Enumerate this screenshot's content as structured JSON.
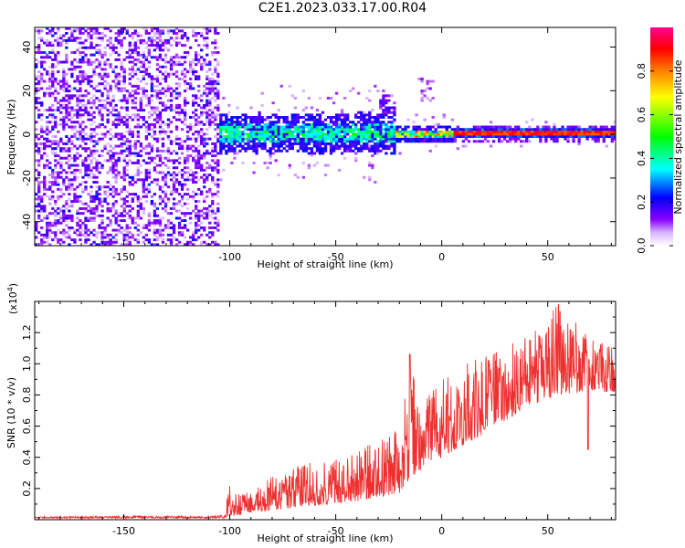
{
  "title": "C2E1.2023.033.17.00.R04",
  "chart_data": [
    {
      "type": "heatmap",
      "xlabel": "Height of straight line (km)",
      "ylabel": "Frequency (Hz)",
      "xlim": [
        -192,
        82
      ],
      "ylim": [
        -51,
        49
      ],
      "x_ticks": [
        -150,
        -100,
        -50,
        0,
        50
      ],
      "y_ticks": [
        -40,
        -20,
        0,
        20,
        40
      ],
      "colorbar": {
        "label": "Normalized spectral amplitude",
        "range": [
          0.0,
          1.0
        ],
        "ticks": [
          0.0,
          0.2,
          0.4,
          0.6,
          0.8
        ],
        "colormap": [
          "#ffffff",
          "#8a00ff",
          "#0000ff",
          "#00ffff",
          "#00ff00",
          "#ffff00",
          "#ff8000",
          "#ff0000",
          "#ff00a0"
        ]
      },
      "regions": [
        {
          "x_range": [
            -192,
            -106
          ],
          "description_level": "noise",
          "amplitude_range": [
            0.0,
            0.15
          ]
        },
        {
          "x_range": [
            -106,
            -22
          ],
          "center_hz": 0,
          "band_halfwidth_hz": 8,
          "amplitude_range": [
            0.1,
            0.5
          ]
        },
        {
          "x_range": [
            -22,
            5
          ],
          "center_hz": 0,
          "band_halfwidth_hz": 3,
          "amplitude_range": [
            0.2,
            0.85
          ]
        },
        {
          "x_range": [
            5,
            82
          ],
          "center_hz": 0,
          "band_halfwidth_hz": 1.5,
          "amplitude_range": [
            0.8,
            1.0
          ]
        }
      ]
    },
    {
      "type": "line",
      "xlabel": "Height of straight line (km)",
      "ylabel": "SNR (10 * v/v)",
      "scale_label": "(x10",
      "scale_exponent": "4",
      "scale_close": ")",
      "xlim": [
        -192,
        82
      ],
      "ylim": [
        0,
        1.4
      ],
      "x_ticks": [
        -150,
        -100,
        -50,
        0,
        50
      ],
      "y_ticks": [
        0.2,
        0.4,
        0.6,
        0.8,
        1.0,
        1.2
      ],
      "y_tick_labels": [
        "0.2",
        "0.4",
        "0.6",
        "0.8",
        "1.0",
        "1.2"
      ],
      "line_color": "#ee3030",
      "envelope": {
        "x": [
          -192,
          -110,
          -102,
          -100,
          -95,
          -80,
          -60,
          -40,
          -20,
          -15,
          -10,
          0,
          20,
          40,
          55,
          70,
          82
        ],
        "baseline": [
          0.01,
          0.01,
          0.01,
          0.02,
          0.03,
          0.06,
          0.09,
          0.12,
          0.17,
          0.25,
          0.32,
          0.4,
          0.55,
          0.72,
          0.8,
          0.82,
          0.82
        ],
        "peak": [
          0.02,
          0.025,
          0.03,
          0.2,
          0.17,
          0.28,
          0.38,
          0.45,
          0.58,
          1.06,
          0.72,
          0.95,
          1.05,
          1.18,
          1.38,
          1.2,
          1.1
        ]
      }
    }
  ]
}
